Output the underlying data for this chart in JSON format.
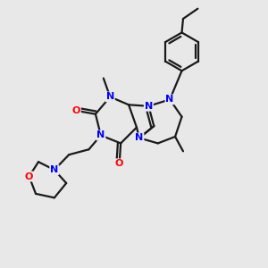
{
  "background_color": "#e8e8e8",
  "bond_color": "#1a1a1a",
  "N_color": "#0000ff",
  "O_color": "#ff0000",
  "C_color": "#1a1a1a",
  "line_width": 1.6,
  "figsize": [
    3.0,
    3.0
  ],
  "dpi": 100,
  "xlim": [
    0,
    10
  ],
  "ylim": [
    0,
    10
  ]
}
